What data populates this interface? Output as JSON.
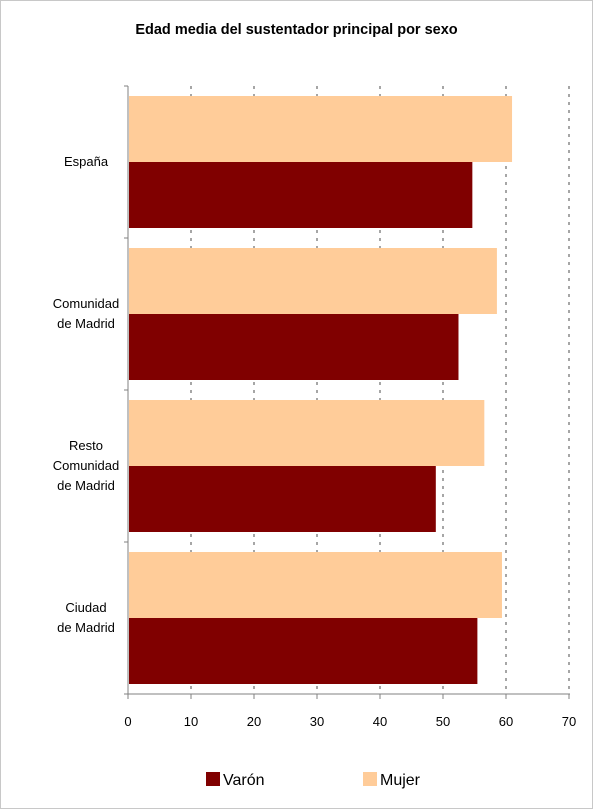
{
  "chart_data": {
    "type": "bar",
    "orientation": "horizontal",
    "title": "Edad media del sustentador principal por sexo",
    "categories": [
      [
        "España"
      ],
      [
        "Comunidad",
        "de Madrid"
      ],
      [
        "Resto",
        "Comunidad",
        "de Madrid"
      ],
      [
        "Ciudad",
        "de Madrid"
      ]
    ],
    "series": [
      {
        "name": "Varón",
        "color": "#800000",
        "values": [
          54.5,
          52.3,
          48.7,
          55.3
        ]
      },
      {
        "name": "Mujer",
        "color": "#FFCC99",
        "values": [
          60.8,
          58.4,
          56.4,
          59.2
        ]
      }
    ],
    "xlim": [
      0,
      70
    ],
    "xticks": [
      "0",
      "10",
      "20",
      "30",
      "40",
      "50",
      "60",
      "70"
    ],
    "grid": true,
    "gridStyle": "dotted vertical",
    "legend": "bottom"
  }
}
